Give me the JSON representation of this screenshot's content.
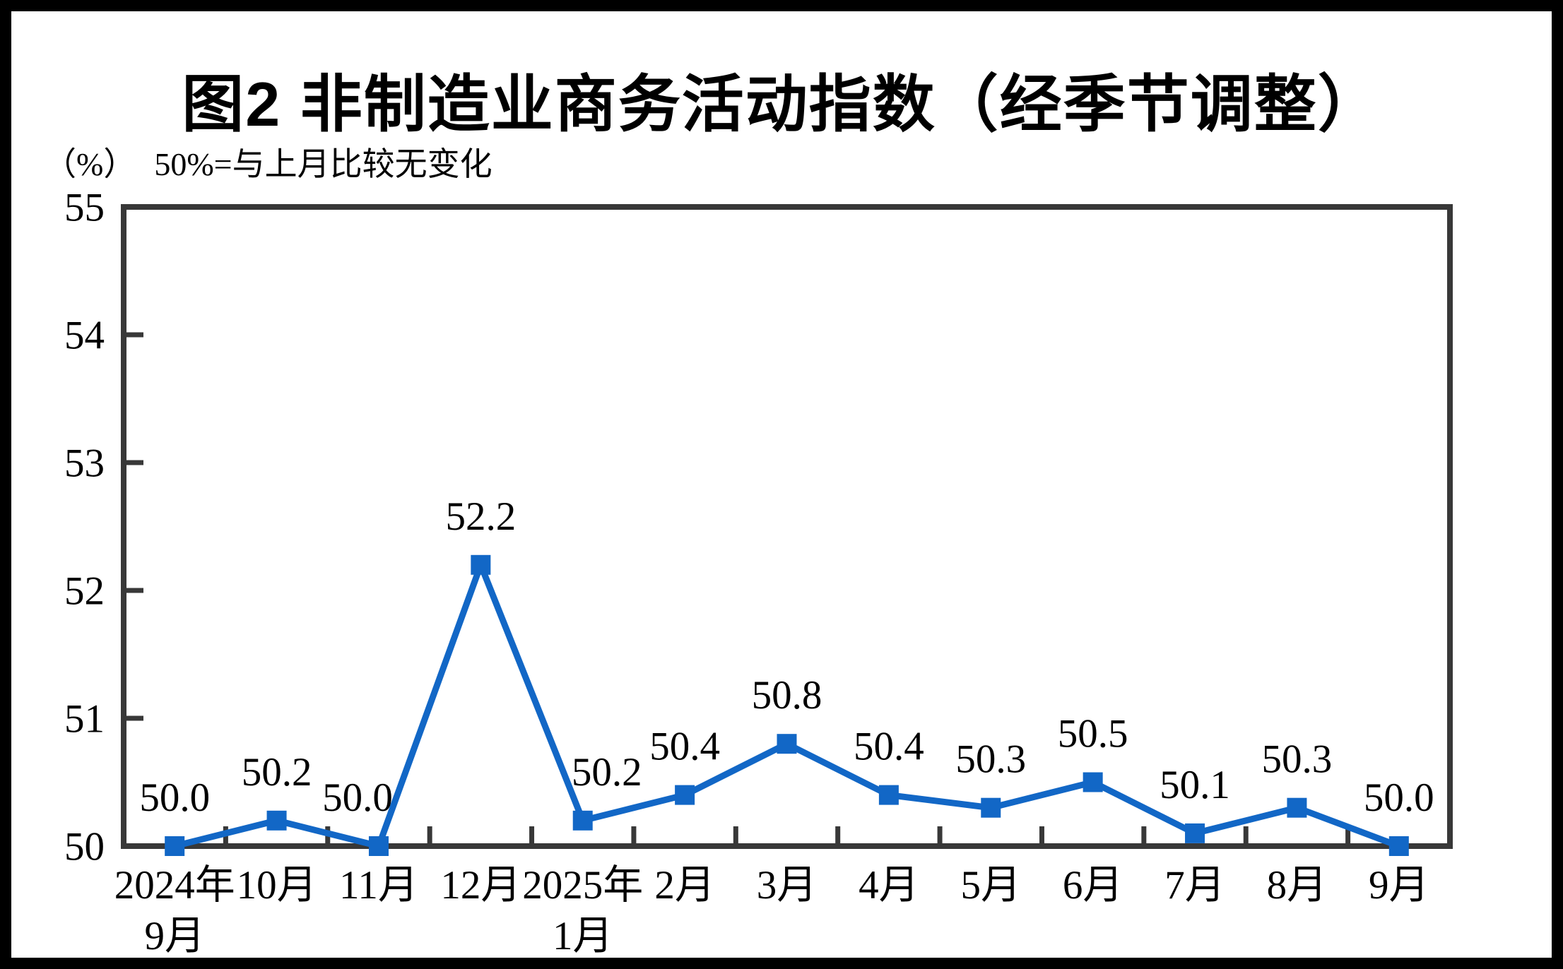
{
  "figure": {
    "title": "图2  非制造业商务活动指数（经季节调整）",
    "unit_note": "（%）",
    "reference_note": "50%=与上月比较无变化"
  },
  "chart_data": {
    "type": "line",
    "title": "图2  非制造业商务活动指数（经季节调整）",
    "subtitle": "（%）50%=与上月比较无变化",
    "categories": [
      "2024年\n9月",
      "10月",
      "11月",
      "12月",
      "2025年\n1月",
      "2月",
      "3月",
      "4月",
      "5月",
      "6月",
      "7月",
      "8月",
      "9月"
    ],
    "series": [
      {
        "name": "非制造业商务活动指数",
        "values": [
          50.0,
          50.2,
          50.0,
          52.2,
          50.2,
          50.4,
          50.8,
          50.4,
          50.3,
          50.5,
          50.1,
          50.3,
          50.0
        ]
      }
    ],
    "data_label_format": "0.1f",
    "xlabel": "",
    "ylabel": "%",
    "ylim": [
      50,
      55
    ],
    "yticks": [
      50,
      51,
      52,
      53,
      54,
      55
    ],
    "grid": false,
    "legend_position": "none",
    "line_color": "#1267c6",
    "marker": "square",
    "axis_color": "#383838",
    "label_color": "#000000",
    "label_offsets": {
      "2": {
        "dx": -30,
        "dy": 0
      },
      "4": {
        "dx": 34,
        "dy": 0
      }
    }
  }
}
